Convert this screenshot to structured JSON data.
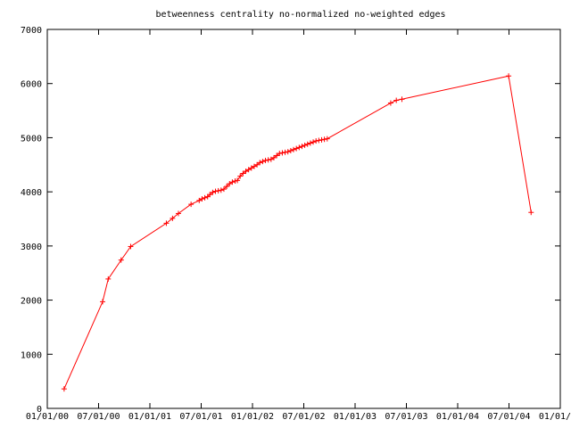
{
  "chart_data": {
    "type": "line",
    "title": "betweenness centrality no-normalized no-weighted edges",
    "xlabel": "",
    "ylabel": "",
    "ylim": [
      0,
      7000
    ],
    "yticks": [
      0,
      1000,
      2000,
      3000,
      4000,
      5000,
      6000,
      7000
    ],
    "xticks": [
      "01/01/00",
      "07/01/00",
      "01/01/01",
      "07/01/01",
      "01/01/02",
      "07/01/02",
      "01/01/03",
      "07/01/03",
      "01/01/04",
      "07/01/04",
      "01/01/05"
    ],
    "xlim": [
      "2000-01-01",
      "2005-01-01"
    ],
    "grid": false,
    "legend": "none",
    "series": [
      {
        "color": "#ff0000",
        "marker": "+",
        "x": [
          "2000-03-01",
          "2000-07-16",
          "2000-08-05",
          "2000-09-20",
          "2000-10-24",
          "2001-02-28",
          "2001-03-22",
          "2001-04-12",
          "2001-05-27",
          "2001-06-25",
          "2001-07-05",
          "2001-07-15",
          "2001-07-25",
          "2001-08-02",
          "2001-08-12",
          "2001-08-22",
          "2001-09-01",
          "2001-09-11",
          "2001-09-21",
          "2001-10-01",
          "2001-10-11",
          "2001-10-21",
          "2001-10-31",
          "2001-11-08",
          "2001-11-18",
          "2001-11-28",
          "2001-12-08",
          "2001-12-18",
          "2001-12-28",
          "2002-01-07",
          "2002-01-17",
          "2002-01-27",
          "2002-02-06",
          "2002-02-16",
          "2002-02-26",
          "2002-03-08",
          "2002-03-18",
          "2002-03-28",
          "2002-04-07",
          "2002-04-17",
          "2002-04-27",
          "2002-05-07",
          "2002-05-17",
          "2002-05-27",
          "2002-06-06",
          "2002-06-16",
          "2002-06-26",
          "2002-07-06",
          "2002-07-16",
          "2002-07-26",
          "2002-08-05",
          "2002-08-15",
          "2002-08-25",
          "2002-09-04",
          "2002-09-14",
          "2002-09-24",
          "2003-05-08",
          "2003-05-28",
          "2003-06-17",
          "2004-07-01",
          "2004-09-19"
        ],
        "y": [
          360,
          1970,
          2390,
          2740,
          2990,
          3420,
          3510,
          3600,
          3770,
          3840,
          3870,
          3890,
          3910,
          3950,
          3990,
          4010,
          4020,
          4030,
          4050,
          4100,
          4150,
          4180,
          4200,
          4210,
          4290,
          4340,
          4380,
          4410,
          4440,
          4470,
          4500,
          4540,
          4560,
          4580,
          4590,
          4600,
          4630,
          4670,
          4710,
          4720,
          4730,
          4740,
          4760,
          4780,
          4800,
          4820,
          4840,
          4860,
          4880,
          4900,
          4920,
          4940,
          4950,
          4960,
          4970,
          4980,
          5640,
          5690,
          5710,
          6140,
          3620
        ]
      }
    ]
  }
}
